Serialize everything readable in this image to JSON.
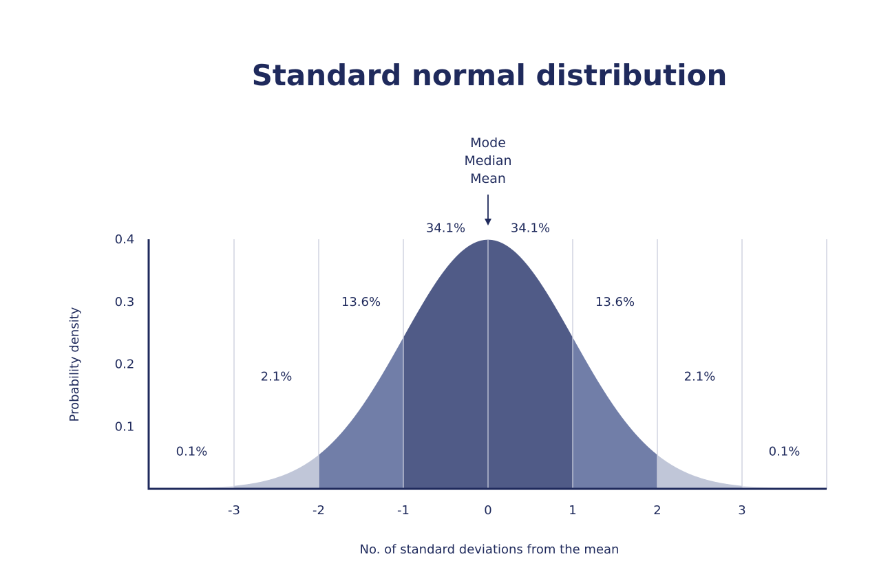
{
  "chart_data": {
    "type": "area",
    "title": "Standard normal distribution",
    "xlabel": "No. of standard deviations from the mean",
    "ylabel": "Probability density",
    "xlim": [
      -3.9,
      3.9
    ],
    "ylim": [
      0,
      0.4
    ],
    "x_ticks": [
      "-3",
      "-2",
      "-1",
      "0",
      "1",
      "2",
      "3"
    ],
    "x_tick_values": [
      -3,
      -2,
      -1,
      0,
      1,
      2,
      3
    ],
    "y_ticks": [
      "0.1",
      "0.2",
      "0.3",
      "0.4"
    ],
    "y_tick_values": [
      0.1,
      0.2,
      0.3,
      0.4
    ],
    "grid": "vertical",
    "regions": [
      {
        "from": -3.9,
        "to": -3,
        "percent": "0.1%",
        "label_x": -3.5,
        "label_y": 0.06,
        "color": "#e4e6ef"
      },
      {
        "from": -3,
        "to": -2,
        "percent": "2.1%",
        "label_x": -2.5,
        "label_y": 0.18,
        "color": "#c0c6d8"
      },
      {
        "from": -2,
        "to": -1,
        "percent": "13.6%",
        "label_x": -1.5,
        "label_y": 0.3,
        "color": "#717ea8"
      },
      {
        "from": -1,
        "to": 0,
        "percent": "34.1%",
        "label_x": -0.5,
        "label_y": 0.418,
        "color": "#505b87"
      },
      {
        "from": 0,
        "to": 1,
        "percent": "34.1%",
        "label_x": 0.5,
        "label_y": 0.418,
        "color": "#505b87"
      },
      {
        "from": 1,
        "to": 2,
        "percent": "13.6%",
        "label_x": 1.5,
        "label_y": 0.3,
        "color": "#717ea8"
      },
      {
        "from": 2,
        "to": 3,
        "percent": "2.1%",
        "label_x": 2.5,
        "label_y": 0.18,
        "color": "#c0c6d8"
      },
      {
        "from": 3,
        "to": 3.9,
        "percent": "0.1%",
        "label_x": 3.5,
        "label_y": 0.06,
        "color": "#e4e6ef"
      }
    ],
    "annotation": {
      "lines": [
        "Mode",
        "Median",
        "Mean"
      ],
      "x": 0
    },
    "colors": {
      "text": "#1f2a5c",
      "axis": "#1f2a5c",
      "grid": "#c9cddc"
    }
  }
}
